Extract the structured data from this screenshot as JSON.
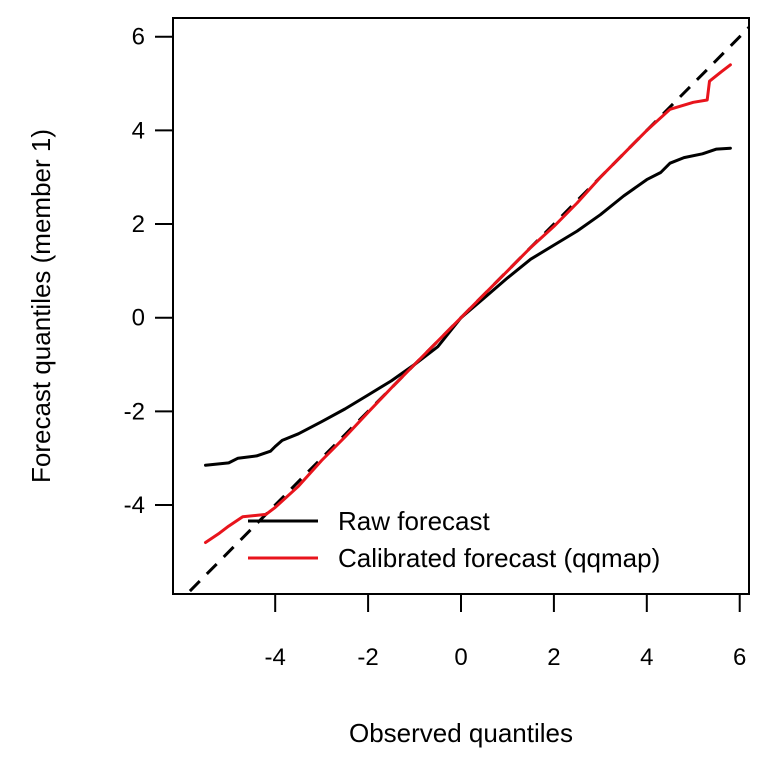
{
  "chart_data": {
    "type": "line",
    "title": "",
    "xlabel": "Observed quantiles",
    "ylabel": "Forecast quantiles (member 1)",
    "xlim": [
      -6.2,
      6.2
    ],
    "ylim": [
      -5.9,
      6.4
    ],
    "x_ticks": [
      -4,
      -2,
      0,
      2,
      4,
      6
    ],
    "y_ticks": [
      -4,
      -2,
      0,
      2,
      4,
      6
    ],
    "x_tick_labels": [
      "-4",
      "-2",
      "0",
      "2",
      "4",
      "6"
    ],
    "y_tick_labels": [
      "-4",
      "-2",
      "0",
      "2",
      "4",
      "6"
    ],
    "grid": false,
    "legend_position": "bottom-right",
    "reference_line": {
      "style": "dashed",
      "color": "#000000",
      "slope": 1,
      "intercept": 0
    },
    "series": [
      {
        "name": "Raw forecast",
        "color": "#000000",
        "points": [
          [
            -5.5,
            -3.15
          ],
          [
            -5.0,
            -3.1
          ],
          [
            -4.8,
            -3.0
          ],
          [
            -4.4,
            -2.95
          ],
          [
            -4.1,
            -2.85
          ],
          [
            -4.0,
            -2.75
          ],
          [
            -3.85,
            -2.62
          ],
          [
            -3.5,
            -2.48
          ],
          [
            -3.0,
            -2.22
          ],
          [
            -2.5,
            -1.95
          ],
          [
            -2.0,
            -1.65
          ],
          [
            -1.5,
            -1.35
          ],
          [
            -1.0,
            -1.0
          ],
          [
            -0.5,
            -0.62
          ],
          [
            0.0,
            0.0
          ],
          [
            0.5,
            0.42
          ],
          [
            1.0,
            0.85
          ],
          [
            1.5,
            1.25
          ],
          [
            2.0,
            1.55
          ],
          [
            2.5,
            1.85
          ],
          [
            3.0,
            2.2
          ],
          [
            3.5,
            2.6
          ],
          [
            4.0,
            2.95
          ],
          [
            4.3,
            3.1
          ],
          [
            4.5,
            3.3
          ],
          [
            4.8,
            3.42
          ],
          [
            5.2,
            3.5
          ],
          [
            5.5,
            3.6
          ],
          [
            5.8,
            3.62
          ]
        ]
      },
      {
        "name": "Calibrated forecast (qqmap)",
        "color": "#e8141c",
        "points": [
          [
            -5.5,
            -4.8
          ],
          [
            -5.2,
            -4.6
          ],
          [
            -5.0,
            -4.45
          ],
          [
            -4.7,
            -4.25
          ],
          [
            -4.2,
            -4.2
          ],
          [
            -4.0,
            -4.05
          ],
          [
            -3.5,
            -3.6
          ],
          [
            -3.0,
            -3.05
          ],
          [
            -2.5,
            -2.55
          ],
          [
            -2.0,
            -2.02
          ],
          [
            -1.5,
            -1.5
          ],
          [
            -1.0,
            -1.0
          ],
          [
            -0.5,
            -0.5
          ],
          [
            0.0,
            0.0
          ],
          [
            0.5,
            0.5
          ],
          [
            1.0,
            1.0
          ],
          [
            1.5,
            1.5
          ],
          [
            2.0,
            1.95
          ],
          [
            2.5,
            2.45
          ],
          [
            3.0,
            3.0
          ],
          [
            3.5,
            3.5
          ],
          [
            4.0,
            4.0
          ],
          [
            4.5,
            4.45
          ],
          [
            5.0,
            4.6
          ],
          [
            5.3,
            4.65
          ],
          [
            5.35,
            5.05
          ],
          [
            5.6,
            5.25
          ],
          [
            5.8,
            5.4
          ]
        ]
      }
    ]
  }
}
